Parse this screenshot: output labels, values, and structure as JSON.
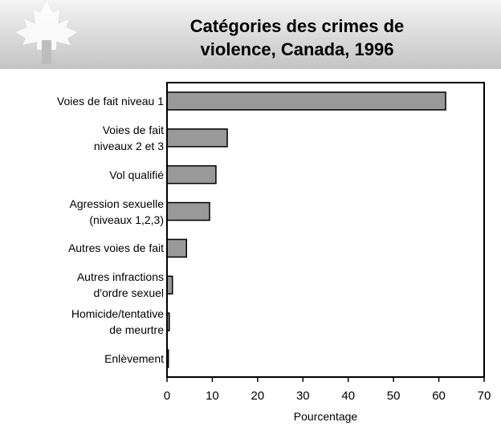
{
  "chart_data": {
    "type": "barh",
    "title": "Catégories des crimes de\nviolence, Canada, 1996",
    "xlabel": "Pourcentage",
    "categories": [
      "Voies de fait niveau 1",
      "Voies de fait\nniveaux 2 et 3",
      "Vol qualifié",
      "Agression sexuelle\n(niveaux 1,2,3)",
      "Autres voies de fait",
      "Autres infractions\nd'ordre sexuel",
      "Homicide/tentative\nde meurtre",
      "Enlèvement"
    ],
    "values": [
      61.5,
      13.3,
      10.8,
      9.4,
      4.3,
      1.2,
      0.5,
      0.3
    ],
    "color": "#999999",
    "xlim": [
      0,
      70
    ],
    "xticks": [
      0,
      10,
      20,
      30,
      40,
      50,
      60,
      70
    ]
  }
}
